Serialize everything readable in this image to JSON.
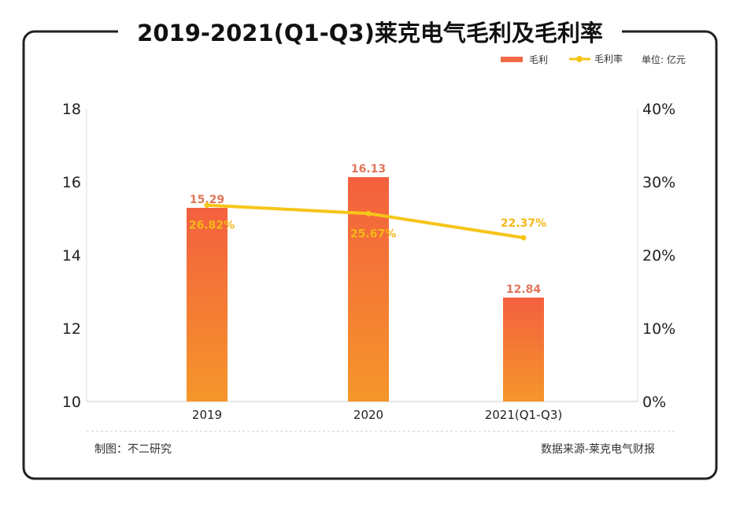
{
  "chart_data": {
    "type": "bar+line",
    "title": "2019-2021(Q1-Q3)莱克电气毛利及毛利率",
    "unit_label": "单位: 亿元",
    "categories": [
      "2019",
      "2020",
      "2021(Q1-Q3)"
    ],
    "series": [
      {
        "name": "毛利",
        "type": "bar",
        "axis": "left",
        "values": [
          15.29,
          16.13,
          12.84
        ],
        "labels": [
          "15.29",
          "16.13",
          "12.84"
        ],
        "color": "#f26a46"
      },
      {
        "name": "毛利率",
        "type": "line",
        "axis": "right",
        "values": [
          26.82,
          25.67,
          22.37
        ],
        "labels": [
          "26.82%",
          "25.67%",
          "22.37%"
        ],
        "color": "#f5c518"
      }
    ],
    "left_axis": {
      "ylim": [
        10,
        18
      ],
      "ticks": [
        "10",
        "12",
        "14",
        "16",
        "18"
      ]
    },
    "right_axis": {
      "ylim": [
        0,
        40
      ],
      "ticks": [
        "0%",
        "10%",
        "20%",
        "30%",
        "40%"
      ]
    },
    "grid": false,
    "legend_placement": "top-right"
  },
  "footer": {
    "left": "制图：不二研究",
    "right": "数据来源-莱克电气财报"
  },
  "watermark": "不二研究"
}
